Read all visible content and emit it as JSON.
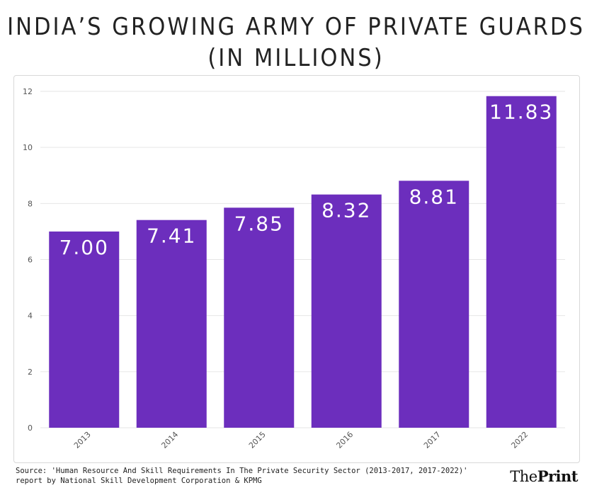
{
  "title_line1": "INDIA’S GROWING ARMY OF PRIVATE GUARDS",
  "title_line2": "(IN MILLIONS)",
  "source_line1": "Source: 'Human Resource And Skill Requirements In The Private Security Sector (2013-2017, 2017-2022)'",
  "source_line2": "report by National Skill Development Corporation & KPMG",
  "brand_part1": "The",
  "brand_part2": "Print",
  "colors": {
    "bar": "#6c2ebd",
    "grid": "#e6e6e6",
    "axis_text": "#555555",
    "bar_label": "#ffffff"
  },
  "chart_data": {
    "type": "bar",
    "categories": [
      "2013",
      "2014",
      "2015",
      "2016",
      "2017",
      "2022"
    ],
    "values": [
      7.0,
      7.41,
      7.85,
      8.32,
      8.81,
      11.83
    ],
    "value_labels": [
      "7.00",
      "7.41",
      "7.85",
      "8.32",
      "8.81",
      "11.83"
    ],
    "title": "INDIA’S GROWING ARMY OF PRIVATE GUARDS (IN MILLIONS)",
    "xlabel": "",
    "ylabel": "",
    "ylim": [
      0,
      12
    ],
    "yticks": [
      "0",
      "2",
      "4",
      "6",
      "8",
      "10",
      "12"
    ],
    "grid": true,
    "legend": "none"
  }
}
